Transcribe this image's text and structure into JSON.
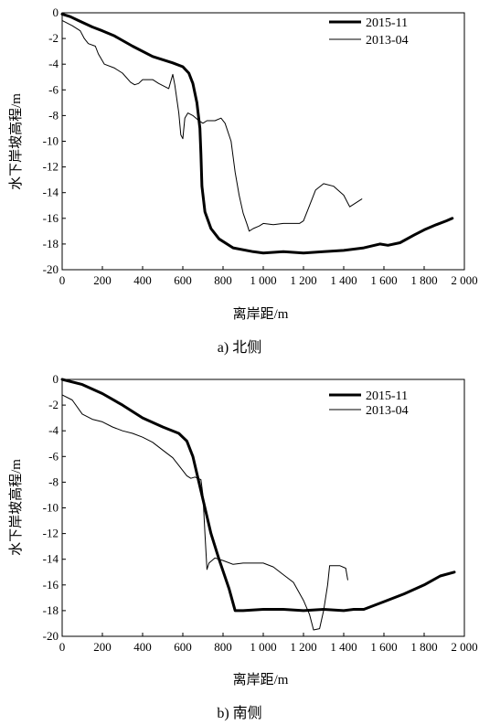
{
  "chart_data": [
    {
      "type": "line",
      "caption": "a) 北侧",
      "xlabel": "离岸距/m",
      "ylabel": "水下岸坡高程/m",
      "xlim": [
        0,
        2000
      ],
      "ylim": [
        -20,
        0
      ],
      "xticks": [
        0,
        200,
        400,
        600,
        800,
        1000,
        1200,
        1400,
        1600,
        1800,
        2000
      ],
      "xtick_labels": [
        "0",
        "200",
        "400",
        "600",
        "800",
        "1 000",
        "1 200",
        "1 400",
        "1 600",
        "1 800",
        "2 000"
      ],
      "yticks": [
        0,
        -2,
        -4,
        -6,
        -8,
        -10,
        -12,
        -14,
        -16,
        -18,
        -20
      ],
      "ytick_labels": [
        "0",
        "-2",
        "-4",
        "-6",
        "-8",
        "-10",
        "-12",
        "-14",
        "-16",
        "-18",
        "-20"
      ],
      "legend_position": "top-right",
      "grid": false,
      "series": [
        {
          "name": "2015-11",
          "color": "#000000",
          "weight": "thick",
          "points": [
            [
              0,
              -0.1
            ],
            [
              40,
              -0.3
            ],
            [
              80,
              -0.6
            ],
            [
              150,
              -1.1
            ],
            [
              200,
              -1.4
            ],
            [
              260,
              -1.8
            ],
            [
              350,
              -2.6
            ],
            [
              450,
              -3.4
            ],
            [
              550,
              -3.9
            ],
            [
              600,
              -4.2
            ],
            [
              630,
              -4.7
            ],
            [
              650,
              -5.5
            ],
            [
              670,
              -7.0
            ],
            [
              685,
              -9.0
            ],
            [
              690,
              -11.0
            ],
            [
              695,
              -13.5
            ],
            [
              710,
              -15.5
            ],
            [
              740,
              -16.8
            ],
            [
              780,
              -17.6
            ],
            [
              850,
              -18.3
            ],
            [
              950,
              -18.6
            ],
            [
              1000,
              -18.7
            ],
            [
              1100,
              -18.6
            ],
            [
              1200,
              -18.7
            ],
            [
              1300,
              -18.6
            ],
            [
              1400,
              -18.5
            ],
            [
              1500,
              -18.3
            ],
            [
              1580,
              -18.0
            ],
            [
              1620,
              -18.1
            ],
            [
              1680,
              -17.9
            ],
            [
              1750,
              -17.3
            ],
            [
              1800,
              -16.9
            ],
            [
              1860,
              -16.5
            ],
            [
              1910,
              -16.2
            ],
            [
              1940,
              -16.0
            ]
          ]
        },
        {
          "name": "2013-04",
          "color": "#000000",
          "weight": "thin",
          "points": [
            [
              0,
              -0.6
            ],
            [
              50,
              -1.0
            ],
            [
              90,
              -1.4
            ],
            [
              110,
              -2.0
            ],
            [
              130,
              -2.4
            ],
            [
              165,
              -2.6
            ],
            [
              180,
              -3.2
            ],
            [
              210,
              -4.0
            ],
            [
              260,
              -4.3
            ],
            [
              300,
              -4.7
            ],
            [
              340,
              -5.4
            ],
            [
              360,
              -5.6
            ],
            [
              380,
              -5.5
            ],
            [
              400,
              -5.2
            ],
            [
              450,
              -5.2
            ],
            [
              480,
              -5.5
            ],
            [
              530,
              -5.9
            ],
            [
              550,
              -4.8
            ],
            [
              560,
              -5.6
            ],
            [
              580,
              -7.8
            ],
            [
              590,
              -9.5
            ],
            [
              600,
              -9.8
            ],
            [
              610,
              -8.2
            ],
            [
              625,
              -7.8
            ],
            [
              650,
              -8.0
            ],
            [
              680,
              -8.4
            ],
            [
              700,
              -8.6
            ],
            [
              720,
              -8.4
            ],
            [
              760,
              -8.4
            ],
            [
              790,
              -8.2
            ],
            [
              810,
              -8.6
            ],
            [
              840,
              -10.0
            ],
            [
              860,
              -12.4
            ],
            [
              880,
              -14.2
            ],
            [
              900,
              -15.6
            ],
            [
              920,
              -16.5
            ],
            [
              930,
              -17.0
            ],
            [
              950,
              -16.8
            ],
            [
              980,
              -16.6
            ],
            [
              1000,
              -16.4
            ],
            [
              1050,
              -16.5
            ],
            [
              1100,
              -16.4
            ],
            [
              1180,
              -16.4
            ],
            [
              1200,
              -16.2
            ],
            [
              1230,
              -15.0
            ],
            [
              1260,
              -13.8
            ],
            [
              1300,
              -13.3
            ],
            [
              1350,
              -13.5
            ],
            [
              1400,
              -14.2
            ],
            [
              1430,
              -15.1
            ],
            [
              1460,
              -14.8
            ],
            [
              1490,
              -14.5
            ]
          ]
        }
      ]
    },
    {
      "type": "line",
      "caption": "b) 南侧",
      "xlabel": "离岸距/m",
      "ylabel": "水下岸坡高程/m",
      "xlim": [
        0,
        2000
      ],
      "ylim": [
        -20,
        0
      ],
      "xticks": [
        0,
        200,
        400,
        600,
        800,
        1000,
        1200,
        1400,
        1600,
        1800,
        2000
      ],
      "xtick_labels": [
        "0",
        "200",
        "400",
        "600",
        "800",
        "1 000",
        "1 200",
        "1 400",
        "1 600",
        "1 800",
        "2 000"
      ],
      "yticks": [
        0,
        -2,
        -4,
        -6,
        -8,
        -10,
        -12,
        -14,
        -16,
        -18,
        -20
      ],
      "ytick_labels": [
        "0",
        "-2",
        "-4",
        "-6",
        "-8",
        "-10",
        "-12",
        "-14",
        "-16",
        "-18",
        "-20"
      ],
      "legend_position": "top-right",
      "grid": false,
      "series": [
        {
          "name": "2015-11",
          "color": "#000000",
          "weight": "thick",
          "points": [
            [
              0,
              0.0
            ],
            [
              100,
              -0.4
            ],
            [
              200,
              -1.1
            ],
            [
              300,
              -2.0
            ],
            [
              400,
              -3.0
            ],
            [
              500,
              -3.7
            ],
            [
              580,
              -4.2
            ],
            [
              620,
              -4.8
            ],
            [
              650,
              -6.0
            ],
            [
              680,
              -8.0
            ],
            [
              710,
              -10.0
            ],
            [
              740,
              -12.0
            ],
            [
              780,
              -14.0
            ],
            [
              830,
              -16.3
            ],
            [
              860,
              -18.0
            ],
            [
              900,
              -18.0
            ],
            [
              1000,
              -17.9
            ],
            [
              1100,
              -17.9
            ],
            [
              1200,
              -18.0
            ],
            [
              1300,
              -17.9
            ],
            [
              1400,
              -18.0
            ],
            [
              1450,
              -17.9
            ],
            [
              1500,
              -17.9
            ],
            [
              1600,
              -17.3
            ],
            [
              1700,
              -16.7
            ],
            [
              1800,
              -16.0
            ],
            [
              1880,
              -15.3
            ],
            [
              1950,
              -15.0
            ]
          ]
        },
        {
          "name": "2013-04",
          "color": "#000000",
          "weight": "thin",
          "points": [
            [
              0,
              -1.2
            ],
            [
              50,
              -1.6
            ],
            [
              100,
              -2.7
            ],
            [
              150,
              -3.1
            ],
            [
              200,
              -3.3
            ],
            [
              250,
              -3.7
            ],
            [
              300,
              -4.0
            ],
            [
              350,
              -4.2
            ],
            [
              400,
              -4.5
            ],
            [
              450,
              -4.9
            ],
            [
              500,
              -5.5
            ],
            [
              550,
              -6.1
            ],
            [
              590,
              -6.9
            ],
            [
              620,
              -7.5
            ],
            [
              640,
              -7.7
            ],
            [
              660,
              -7.6
            ],
            [
              690,
              -7.8
            ],
            [
              700,
              -9.0
            ],
            [
              710,
              -12.0
            ],
            [
              720,
              -14.8
            ],
            [
              730,
              -14.3
            ],
            [
              760,
              -13.9
            ],
            [
              800,
              -14.1
            ],
            [
              850,
              -14.4
            ],
            [
              900,
              -14.3
            ],
            [
              1000,
              -14.3
            ],
            [
              1050,
              -14.6
            ],
            [
              1100,
              -15.2
            ],
            [
              1150,
              -15.8
            ],
            [
              1200,
              -17.2
            ],
            [
              1230,
              -18.3
            ],
            [
              1250,
              -19.5
            ],
            [
              1280,
              -19.4
            ],
            [
              1300,
              -18.0
            ],
            [
              1320,
              -16.0
            ],
            [
              1330,
              -14.5
            ],
            [
              1380,
              -14.5
            ],
            [
              1410,
              -14.7
            ],
            [
              1420,
              -15.6
            ]
          ]
        }
      ]
    }
  ]
}
